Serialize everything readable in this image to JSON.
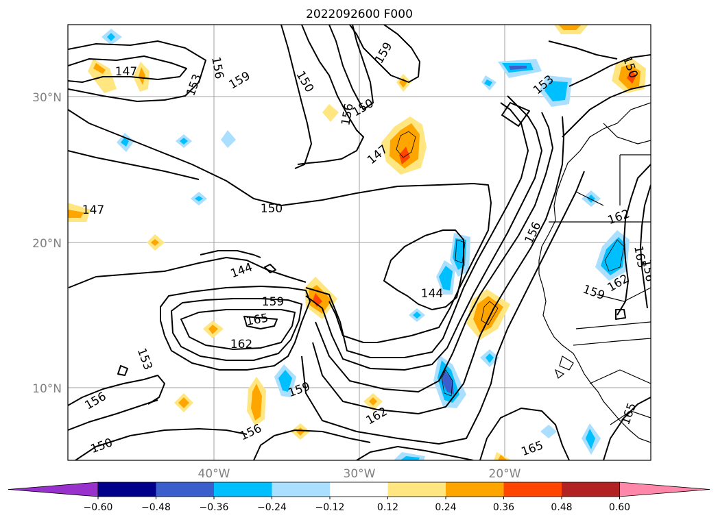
{
  "title": "2022092600 F000",
  "axes": {
    "lat_labels": [
      "30°N",
      "20°N",
      "10°N"
    ],
    "lon_labels": [
      "40°W",
      "30°W",
      "20°W"
    ]
  },
  "contour_labels": [
    "147",
    "153",
    "156",
    "159",
    "150",
    "159",
    "150",
    "156",
    "150",
    "147",
    "153",
    "150",
    "147",
    "156",
    "162",
    "144",
    "159",
    "165",
    "162",
    "153",
    "156",
    "150",
    "159",
    "156",
    "162",
    "165",
    "144",
    "159",
    "162",
    "165",
    "165",
    "156"
  ],
  "colorbar": {
    "ticks": [
      "−0.60",
      "−0.48",
      "−0.36",
      "−0.24",
      "−0.12",
      "0.12",
      "0.24",
      "0.36",
      "0.48",
      "0.60"
    ],
    "colors": [
      "#9932cc",
      "#00008b",
      "#3a5fcd",
      "#00bfff",
      "#aadfff",
      "#ffffff",
      "#ffe680",
      "#ffa500",
      "#ff4500",
      "#b22222",
      "#ff88aa"
    ]
  },
  "shading_colors": {
    "pos_light": "#ffe680",
    "pos_mid": "#ffa500",
    "pos_dark": "#ff4500",
    "neg_light": "#aadfff",
    "neg_mid": "#00bfff",
    "neg_dark": "#3a5fcd"
  }
}
